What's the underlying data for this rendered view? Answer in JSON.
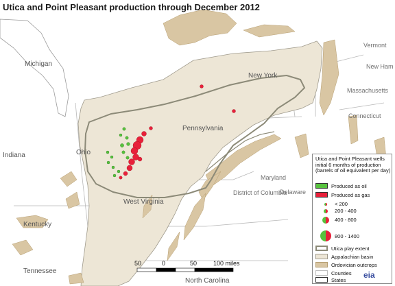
{
  "title": "Utica and Point Pleasant production through December 2012",
  "colors": {
    "basin": "#ede6d6",
    "outcrop": "#d9c6a3",
    "oil": "#57c23e",
    "gas": "#e8203a",
    "play_outline": "#8c8a78",
    "water": "#ffffff"
  },
  "map_labels": {
    "michigan": "Michigan",
    "new_york": "New York",
    "vermont": "Vermont",
    "new_hampshire": "New Ham",
    "massachusetts": "Massachusetts",
    "connecticut": "Connecticut",
    "pennsylvania": "Pennsylvania",
    "ohio": "Ohio",
    "indiana": "Indiana",
    "west_virginia": "West Virginia",
    "maryland": "Maryland",
    "district_of_columbia": "District of Columbia",
    "delaware": "Delaware",
    "kentucky": "Kentucky",
    "tennessee": "Tennessee",
    "north_carolina": "North Carolina"
  },
  "scale_bar": {
    "labels": [
      "50",
      "0",
      "50",
      "100 miles"
    ]
  },
  "legend": {
    "header": "Utica and Point Pleasant wells initial 6 months of production (barrels of oil equivalent per day)",
    "produced_as_oil": "Produced as oil",
    "produced_as_gas": "Produced as gas",
    "size_classes": [
      "< 200",
      "200 - 400",
      "400 - 800",
      "800 - 1400"
    ],
    "utica_play_extent": "Utica play extent",
    "appalachian_basin": "Appalachian basin",
    "ordovician_outcrops": "Ordovician outcrops",
    "counties": "Counties",
    "states": "States"
  },
  "source_logo": "eia"
}
